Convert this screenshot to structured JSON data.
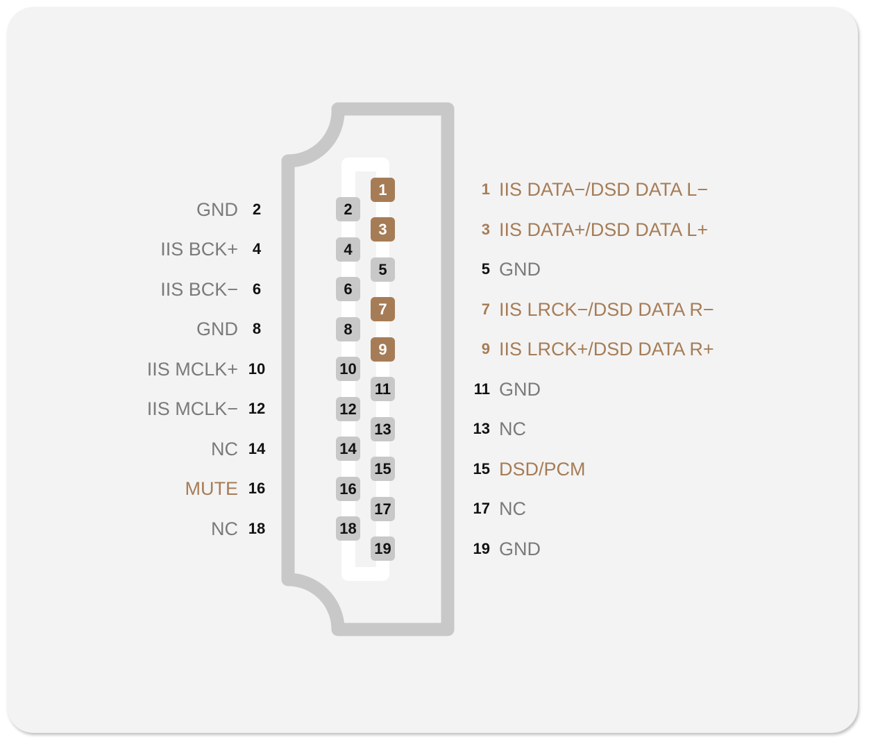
{
  "colors": {
    "highlight": "#a67c56",
    "label": "#7a7a7a",
    "connector": "#c8c8c8",
    "background": "#f3f3f3"
  },
  "pins": [
    {
      "n": "1",
      "label": "IIS DATA−/DSD DATA L−",
      "highlight": true
    },
    {
      "n": "2",
      "label": "GND",
      "highlight": false
    },
    {
      "n": "3",
      "label": "IIS DATA+/DSD DATA L+",
      "highlight": true
    },
    {
      "n": "4",
      "label": "IIS BCK+",
      "highlight": false
    },
    {
      "n": "5",
      "label": "GND",
      "highlight": false
    },
    {
      "n": "6",
      "label": "IIS BCK−",
      "highlight": false
    },
    {
      "n": "7",
      "label": "IIS LRCK−/DSD DATA R−",
      "highlight": true
    },
    {
      "n": "8",
      "label": "GND",
      "highlight": false
    },
    {
      "n": "9",
      "label": "IIS LRCK+/DSD DATA R+",
      "highlight": true
    },
    {
      "n": "10",
      "label": "IIS MCLK+",
      "highlight": false
    },
    {
      "n": "11",
      "label": "GND",
      "highlight": false
    },
    {
      "n": "12",
      "label": "IIS MCLK−",
      "highlight": false
    },
    {
      "n": "13",
      "label": "NC",
      "highlight": false
    },
    {
      "n": "14",
      "label": "NC",
      "highlight": false
    },
    {
      "n": "15",
      "label": "DSD/PCM",
      "highlight": true
    },
    {
      "n": "16",
      "label": "MUTE",
      "highlight": true
    },
    {
      "n": "17",
      "label": "NC",
      "highlight": false
    },
    {
      "n": "18",
      "label": "NC",
      "highlight": false
    },
    {
      "n": "19",
      "label": "GND",
      "highlight": false
    }
  ]
}
